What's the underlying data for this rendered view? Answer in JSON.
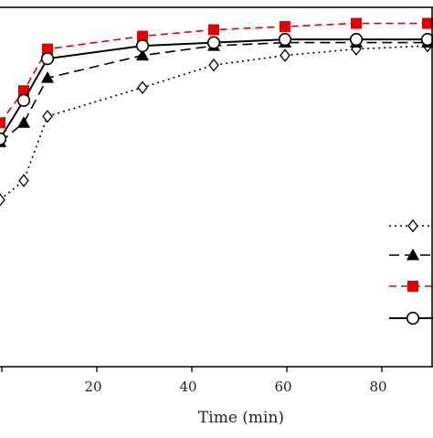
{
  "chart_data": {
    "type": "line",
    "xlabel": "Time (min)",
    "ylabel": "",
    "title": "",
    "xlim": [
      0,
      94
    ],
    "ylim": [
      0,
      1.12
    ],
    "x_ticks": [
      20,
      40,
      60,
      80
    ],
    "grid": false,
    "legend_position": "lower-right",
    "series": [
      {
        "style": "dotted",
        "marker": "open-diamond",
        "color": "#000000",
        "points": [
          [
            0,
            0.52
          ],
          [
            5,
            0.58
          ],
          [
            10,
            0.78
          ],
          [
            30,
            0.87
          ],
          [
            45,
            0.94
          ],
          [
            60,
            0.97
          ],
          [
            75,
            0.99
          ],
          [
            90,
            1.0
          ]
        ]
      },
      {
        "style": "long-dash",
        "marker": "filled-triangle",
        "color": "#000000",
        "points": [
          [
            0,
            0.7
          ],
          [
            5,
            0.76
          ],
          [
            10,
            0.9
          ],
          [
            30,
            0.97
          ],
          [
            45,
            1.0
          ],
          [
            60,
            1.01
          ],
          [
            75,
            1.01
          ],
          [
            90,
            1.01
          ]
        ]
      },
      {
        "style": "dashed",
        "marker": "filled-square",
        "color": "#e00000",
        "points": [
          [
            0,
            0.76
          ],
          [
            5,
            0.86
          ],
          [
            10,
            0.99
          ],
          [
            30,
            1.03
          ],
          [
            45,
            1.05
          ],
          [
            60,
            1.06
          ],
          [
            75,
            1.07
          ],
          [
            90,
            1.07
          ]
        ]
      },
      {
        "style": "solid",
        "marker": "open-circle",
        "color": "#000000",
        "points": [
          [
            0,
            0.71
          ],
          [
            5,
            0.83
          ],
          [
            10,
            0.96
          ],
          [
            30,
            1.0
          ],
          [
            45,
            1.01
          ],
          [
            60,
            1.02
          ],
          [
            75,
            1.02
          ],
          [
            90,
            1.02
          ]
        ]
      }
    ]
  }
}
